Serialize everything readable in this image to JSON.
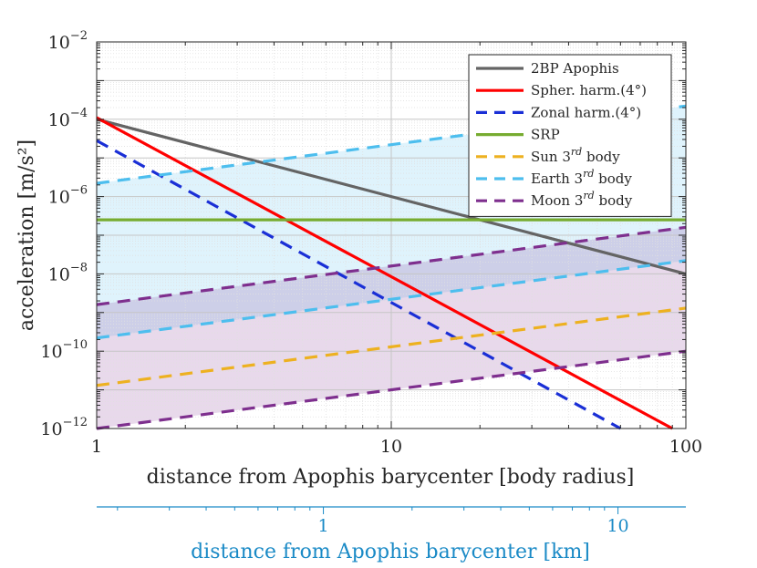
{
  "chart_data": {
    "type": "line",
    "xscale": "log",
    "yscale": "log",
    "xlim": [
      1,
      100
    ],
    "ylim": [
      1e-12,
      0.01
    ],
    "xlabel": "distance from Apophis barycenter [body radius]",
    "ylabel": "acceleration [m/s²]",
    "x_ticks": [
      {
        "value": 1,
        "label": "1"
      },
      {
        "value": 10,
        "label": "10"
      },
      {
        "value": 100,
        "label": "100"
      }
    ],
    "y_ticks": [
      {
        "value": 1e-12,
        "base": "10",
        "exp": "−12"
      },
      {
        "value": 1e-10,
        "base": "10",
        "exp": "−10"
      },
      {
        "value": 1e-08,
        "base": "10",
        "exp": "−8"
      },
      {
        "value": 1e-06,
        "base": "10",
        "exp": "−6"
      },
      {
        "value": 0.0001,
        "base": "10",
        "exp": "−4"
      },
      {
        "value": 0.01,
        "base": "10",
        "exp": "−2"
      }
    ],
    "grid": true,
    "legend_position": "top-right",
    "secondary_x_axis": {
      "label": "distance from Apophis barycenter [km]",
      "position": "bottom",
      "color": "#1a8ac6",
      "range_km": [
        0.17,
        17
      ],
      "ticks": [
        {
          "value": 1,
          "label": "1"
        },
        {
          "value": 10,
          "label": "10"
        }
      ]
    },
    "series": [
      {
        "name": "2BP Apophis",
        "color": "#646464",
        "dash": "solid",
        "x": [
          1,
          100
        ],
        "y": [
          0.0001,
          1e-08
        ]
      },
      {
        "name": "Spher. harm.(4°)",
        "color": "#ff0000",
        "dash": "solid",
        "x": [
          1,
          90
        ],
        "y": [
          0.00011,
          1e-12
        ]
      },
      {
        "name": "Zonal harm.(4°)",
        "color": "#1a2fd6",
        "dash": "dashed",
        "x": [
          1,
          60
        ],
        "y": [
          2.8e-05,
          1e-12
        ]
      },
      {
        "name": "SRP",
        "color": "#77ac30",
        "dash": "solid",
        "x": [
          1,
          100
        ],
        "y": [
          2.5e-07,
          2.5e-07
        ]
      },
      {
        "name": "Sun 3rd body",
        "color": "#edb120",
        "dash": "dashed",
        "x": [
          1,
          100
        ],
        "y": [
          1.3e-11,
          1.3e-09
        ]
      },
      {
        "name": "Earth 3rd body",
        "color": "#4dbeee",
        "dash": "dashed",
        "x": [
          1,
          100
        ],
        "y": [
          2.2e-10,
          2.2e-08
        ]
      },
      {
        "name": "Earth 3rd body",
        "color": "#4dbeee",
        "dash": "dashed",
        "x": [
          1,
          100
        ],
        "y": [
          2.2e-06,
          0.00022
        ]
      },
      {
        "name": "Moon 3rd body",
        "color": "#7e2f8e",
        "dash": "dashed",
        "x": [
          1,
          100
        ],
        "y": [
          1.6e-09,
          1.6e-07
        ]
      },
      {
        "name": "Moon 3rd body",
        "color": "#7e2f8e",
        "dash": "dashed",
        "x": [
          1,
          100
        ],
        "y": [
          1e-12,
          1e-10
        ]
      }
    ],
    "shaded_bands": [
      {
        "color": "#4dbeee",
        "lower": [
          2.2e-10,
          2.2e-08
        ],
        "upper": [
          2.2e-06,
          0.00022
        ],
        "x": [
          1,
          100
        ]
      },
      {
        "color": "#7e2f8e",
        "lower": [
          1e-12,
          1e-10
        ],
        "upper": [
          1.6e-09,
          1.6e-07
        ],
        "x": [
          1,
          100
        ]
      }
    ],
    "legend": [
      {
        "text": "2BP Apophis",
        "sup": "",
        "suffix": "",
        "color": "#646464",
        "dash": "solid"
      },
      {
        "text": "Spher. harm.(4°)",
        "sup": "",
        "suffix": "",
        "color": "#ff0000",
        "dash": "solid"
      },
      {
        "text": "Zonal harm.(4°)",
        "sup": "",
        "suffix": "",
        "color": "#1a2fd6",
        "dash": "dashed"
      },
      {
        "text": "SRP",
        "sup": "",
        "suffix": "",
        "color": "#77ac30",
        "dash": "solid"
      },
      {
        "text": "Sun 3",
        "sup": "rd",
        "suffix": " body",
        "color": "#edb120",
        "dash": "dashed"
      },
      {
        "text": "Earth 3",
        "sup": "rd",
        "suffix": " body",
        "color": "#4dbeee",
        "dash": "dashed"
      },
      {
        "text": "Moon 3",
        "sup": "rd",
        "suffix": " body",
        "color": "#7e2f8e",
        "dash": "dashed"
      }
    ]
  }
}
